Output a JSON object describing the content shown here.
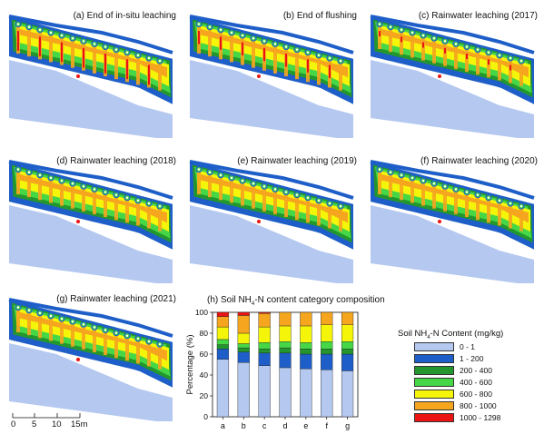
{
  "panels": [
    {
      "label": "(a) End of in-situ leaching",
      "red_level": 3,
      "orange_level": 3
    },
    {
      "label": "(b) End of flushing",
      "red_level": 2,
      "orange_level": 3
    },
    {
      "label": "(c) Rainwater leaching (2017)",
      "red_level": 1,
      "orange_level": 2
    },
    {
      "label": "(d) Rainwater leaching (2018)",
      "red_level": 0,
      "orange_level": 2
    },
    {
      "label": "(e) Rainwater leaching (2019)",
      "red_level": 0,
      "orange_level": 2
    },
    {
      "label": "(f) Rainwater leaching (2020)",
      "red_level": 0,
      "orange_level": 2
    },
    {
      "label": "(g) Rainwater leaching (2021)",
      "red_level": 0,
      "orange_level": 2
    }
  ],
  "scale_bar": {
    "ticks": [
      "0",
      "5",
      "10",
      "15m"
    ]
  },
  "legend": {
    "title_prefix": "Soil NH",
    "title_sub": "4",
    "title_suffix": "-N Content (mg/kg)",
    "items": [
      {
        "label": "0 - 1",
        "color": "#b4c8f0"
      },
      {
        "label": "1 - 200",
        "color": "#1e5ec8"
      },
      {
        "label": "200 - 400",
        "color": "#23962d"
      },
      {
        "label": "400 - 600",
        "color": "#46d746"
      },
      {
        "label": "600 - 800",
        "color": "#f5f50a"
      },
      {
        "label": "800 - 1000",
        "color": "#f5a51e"
      },
      {
        "label": "1000 - 1298",
        "color": "#eb1414"
      }
    ]
  },
  "chart_data": {
    "type": "bar",
    "stacked": true,
    "title_prefix": "(h) Soil NH",
    "title_sub": "4",
    "title_suffix": "-N content category composition",
    "ylabel": "Percentage (%)",
    "ylim": [
      0,
      100
    ],
    "yticks": [
      0,
      20,
      40,
      60,
      80,
      100
    ],
    "categories": [
      "a",
      "b",
      "c",
      "d",
      "e",
      "f",
      "g"
    ],
    "series": [
      {
        "name": "0 - 1",
        "color": "#b4c8f0",
        "values": [
          55,
          52,
          49,
          47,
          46,
          45,
          44
        ]
      },
      {
        "name": "1 - 200",
        "color": "#1e5ec8",
        "values": [
          10,
          10,
          12,
          14,
          14,
          15,
          16
        ]
      },
      {
        "name": "200 - 400",
        "color": "#23962d",
        "values": [
          4,
          4,
          4,
          5,
          5,
          5,
          5
        ]
      },
      {
        "name": "400 - 600",
        "color": "#46d746",
        "values": [
          5,
          4,
          6,
          6,
          6,
          7,
          7
        ]
      },
      {
        "name": "600 - 800",
        "color": "#f5f50a",
        "values": [
          12,
          10,
          15,
          15,
          16,
          16,
          16
        ]
      },
      {
        "name": "800 - 1000",
        "color": "#f5a51e",
        "values": [
          10,
          17,
          13,
          13,
          13,
          12,
          12
        ]
      },
      {
        "name": "1000 - 1298",
        "color": "#eb1414",
        "values": [
          4,
          3,
          1,
          0,
          0,
          0,
          0
        ]
      }
    ]
  }
}
